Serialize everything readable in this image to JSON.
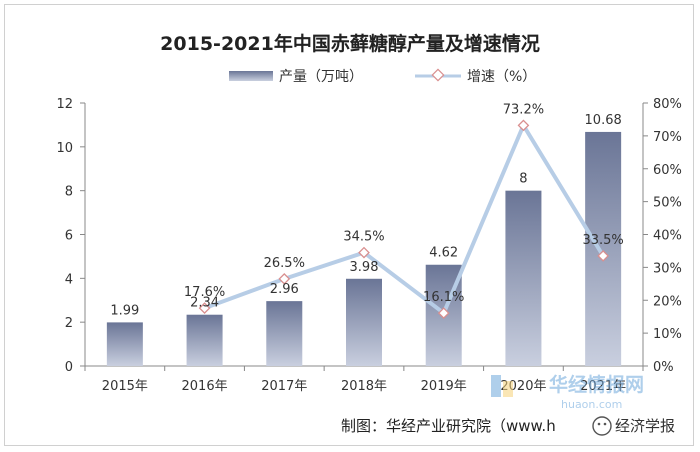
{
  "chart_data": {
    "type": "bar+line",
    "title": "2015-2021年中国赤藓糖醇产量及增速情况",
    "categories": [
      "2015年",
      "2016年",
      "2017年",
      "2018年",
      "2019年",
      "2020年",
      "2021年"
    ],
    "series": [
      {
        "name": "产量（万吨）",
        "type": "bar",
        "axis": "left",
        "values": [
          1.99,
          2.34,
          2.96,
          3.98,
          4.62,
          8,
          10.68
        ],
        "labels": [
          "1.99",
          "2.34",
          "2.96",
          "3.98",
          "4.62",
          "8",
          "10.68"
        ]
      },
      {
        "name": "增速（%）",
        "type": "line",
        "axis": "right",
        "values": [
          null,
          17.6,
          26.5,
          34.5,
          16.1,
          73.2,
          33.5
        ],
        "labels": [
          "",
          "17.6%",
          "26.5%",
          "34.5%",
          "16.1%",
          "73.2%",
          "33.5%"
        ]
      }
    ],
    "y_left": {
      "min": 0,
      "max": 12,
      "ticks": [
        "0",
        "2",
        "4",
        "6",
        "8",
        "10",
        "12"
      ]
    },
    "y_right": {
      "min": 0,
      "max": 80,
      "ticks": [
        "0%",
        "10%",
        "20%",
        "30%",
        "40%",
        "50%",
        "60%",
        "70%",
        "80%"
      ]
    },
    "grid": false,
    "legend": "top",
    "colors": {
      "bar_top": "#6a7596",
      "bar_bottom": "#c9cfdf",
      "line": "#b7cde6",
      "marker": "#d98f8f"
    }
  },
  "footer": {
    "source": "制图：华经产业研究院（www.h",
    "watermark_logo": "华经情报网",
    "watermark_url": "huaon.com",
    "watermark_tag": "经济学报"
  }
}
